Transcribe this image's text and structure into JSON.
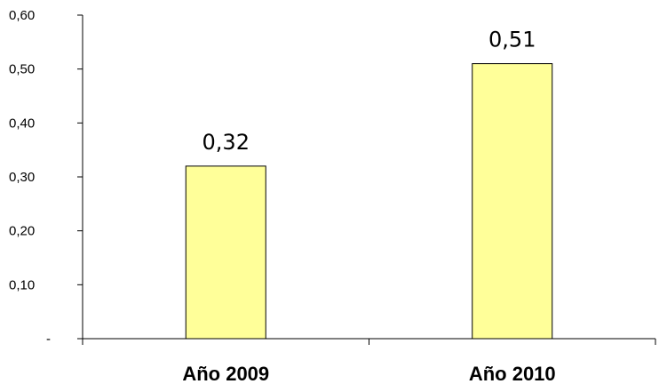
{
  "chart_data": {
    "type": "bar",
    "categories": [
      "Año 2009",
      "Año 2010"
    ],
    "values": [
      0.32,
      0.51
    ],
    "value_labels": [
      "0,32",
      "0,51"
    ],
    "ylim": [
      0,
      0.6
    ],
    "yticks": [
      0,
      0.1,
      0.2,
      0.3,
      0.4,
      0.5,
      0.6
    ],
    "ytick_labels": [
      "-",
      "0,10",
      "0,20",
      "0,30",
      "0,40",
      "0,50",
      "0,60"
    ],
    "title": "",
    "xlabel": "",
    "ylabel": "",
    "grid": false,
    "legend": "none",
    "bar_color": "#FFFF99"
  }
}
